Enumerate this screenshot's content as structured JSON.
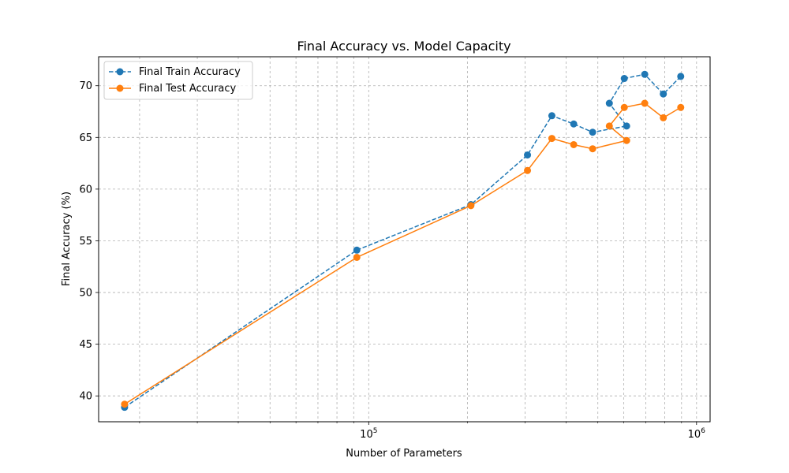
{
  "chart_data": {
    "type": "line",
    "title": "Final Accuracy vs. Model Capacity",
    "xlabel": "Number of Parameters",
    "ylabel": "Final Accuracy (%)",
    "xscale": "log",
    "xlim": [
      15000,
      1100000
    ],
    "ylim": [
      37.5,
      72.8
    ],
    "grid": true,
    "grid_style": "dashed",
    "legend_position": "top-left",
    "x": [
      18000,
      92000,
      205000,
      305000,
      362000,
      422000,
      482000,
      542000,
      602000,
      612000,
      695000,
      792000,
      895000
    ],
    "series": [
      {
        "name": "Final Train Accuracy",
        "color": "#1f77b4",
        "line_style": "dashed",
        "marker": "circle",
        "points": [
          [
            18000,
            38.9
          ],
          [
            92000,
            54.1
          ],
          [
            205000,
            58.5
          ],
          [
            305000,
            63.3
          ],
          [
            362000,
            67.1
          ],
          [
            422000,
            66.3
          ],
          [
            482000,
            65.5
          ],
          [
            612000,
            66.1
          ],
          [
            542000,
            68.3
          ],
          [
            602000,
            70.7
          ],
          [
            695000,
            71.1
          ],
          [
            792000,
            69.2
          ],
          [
            895000,
            70.9
          ]
        ]
      },
      {
        "name": "Final Test Accuracy",
        "color": "#ff7f0e",
        "line_style": "solid",
        "marker": "circle",
        "points": [
          [
            18000,
            39.2
          ],
          [
            92000,
            53.4
          ],
          [
            205000,
            58.4
          ],
          [
            305000,
            61.8
          ],
          [
            362000,
            64.9
          ],
          [
            422000,
            64.3
          ],
          [
            482000,
            63.9
          ],
          [
            612000,
            64.7
          ],
          [
            542000,
            66.1
          ],
          [
            602000,
            67.9
          ],
          [
            695000,
            68.3
          ],
          [
            792000,
            66.9
          ],
          [
            895000,
            67.9
          ]
        ]
      }
    ],
    "y_ticks": [
      40,
      45,
      50,
      55,
      60,
      65,
      70
    ],
    "x_major_ticks": [
      {
        "value": 100000,
        "base": "10",
        "exp": "5"
      },
      {
        "value": 1000000,
        "base": "10",
        "exp": "6"
      }
    ],
    "x_minor_ticks": [
      20000,
      30000,
      40000,
      50000,
      60000,
      70000,
      80000,
      90000,
      200000,
      300000,
      400000,
      500000,
      600000,
      700000,
      800000,
      900000
    ]
  }
}
